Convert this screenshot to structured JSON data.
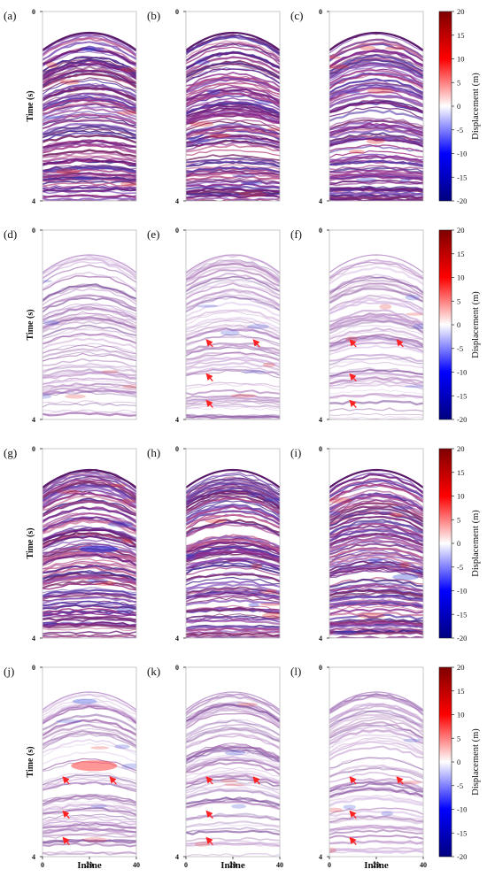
{
  "chart_data": {
    "type": "heatmap",
    "title": "",
    "colormap": "seismic",
    "colorbar": {
      "label": "Displacement (m)",
      "range": [
        -20,
        20
      ],
      "ticks": [
        "20",
        "15",
        "10",
        "5",
        "0",
        "-5",
        "-10",
        "-15",
        "-20"
      ]
    },
    "axes": {
      "xlabel": "Inline",
      "ylabel": "Time (s)",
      "xlim": [
        0,
        40
      ],
      "ylim": [
        0,
        4
      ],
      "xticks": [
        "0",
        "20",
        "40"
      ],
      "yticks": [
        "0",
        "4"
      ]
    },
    "panels": [
      {
        "label": "(a)",
        "variant": "dense",
        "arrows": false
      },
      {
        "label": "(b)",
        "variant": "dense",
        "arrows": false
      },
      {
        "label": "(c)",
        "variant": "dense",
        "arrows": false
      },
      {
        "label": "(d)",
        "variant": "sparse",
        "arrows": false
      },
      {
        "label": "(e)",
        "variant": "sparse",
        "arrows": true
      },
      {
        "label": "(f)",
        "variant": "sparse",
        "arrows": true
      },
      {
        "label": "(g)",
        "variant": "dense",
        "arrows": false
      },
      {
        "label": "(h)",
        "variant": "dense",
        "arrows": false
      },
      {
        "label": "(i)",
        "variant": "dense",
        "arrows": false
      },
      {
        "label": "(j)",
        "variant": "sparse",
        "arrows": true
      },
      {
        "label": "(k)",
        "variant": "sparse",
        "arrows": true
      },
      {
        "label": "(l)",
        "variant": "sparse",
        "arrows": true
      }
    ]
  },
  "colors": {
    "neg_dark": "#00007f",
    "neg": "#0000ff",
    "zero": "#ffffff",
    "pos": "#ff0000",
    "pos_dark": "#7f0000",
    "arrow": "#ff2222"
  }
}
